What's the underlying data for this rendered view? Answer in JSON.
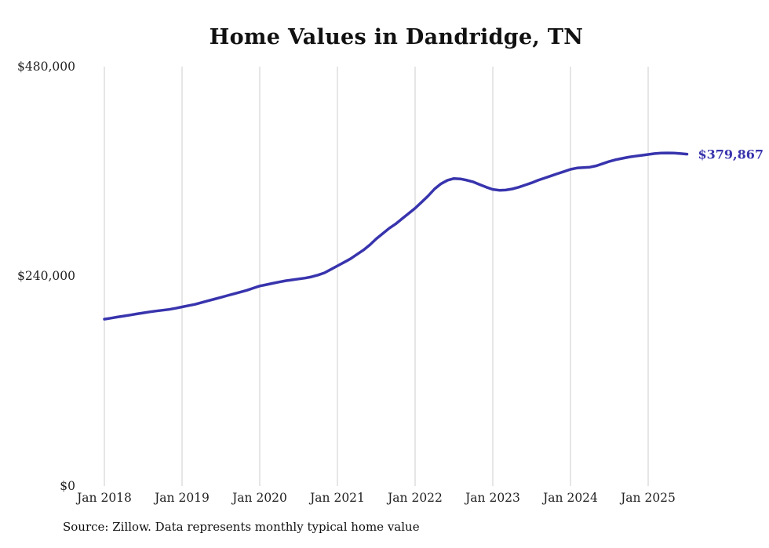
{
  "title": "Home Values in Dandridge, TN",
  "source_note": "Source: Zillow. Data represents monthly typical home value",
  "chart_data": {
    "type": "line",
    "title": "Home Values in Dandridge, TN",
    "xlabel": "",
    "ylabel": "",
    "unit": "USD",
    "frequency": "monthly",
    "start_month": "Jan 2018",
    "end_month": "Jul 2025",
    "ylim": [
      0,
      480000
    ],
    "grid": "vertical-only",
    "legend": "none",
    "line_color": "#3834ad",
    "grid_color": "#cccccc",
    "end_label": "$379,867",
    "end_value": 379867,
    "x_tick_labels": [
      "Jan 2018",
      "Jan 2019",
      "Jan 2020",
      "Jan 2021",
      "Jan 2022",
      "Jan 2023",
      "Jan 2024",
      "Jan 2025"
    ],
    "y_ticks": [
      {
        "label": "$0",
        "value": 0
      },
      {
        "label": "$240,000",
        "value": 240000
      },
      {
        "label": "$480,000",
        "value": 480000
      }
    ],
    "series": [
      {
        "name": "Typical home value",
        "values": [
          191000,
          192200,
          193400,
          194600,
          195800,
          197000,
          198200,
          199400,
          200300,
          201200,
          202100,
          203500,
          205000,
          206500,
          208000,
          210000,
          212000,
          214000,
          216000,
          218000,
          220000,
          222000,
          224000,
          226500,
          229000,
          230500,
          232000,
          233500,
          235000,
          236000,
          237000,
          238000,
          239500,
          241500,
          244000,
          248000,
          252000,
          256000,
          260000,
          265000,
          270000,
          276000,
          283000,
          289000,
          295000,
          300000,
          306000,
          312000,
          318000,
          325000,
          332000,
          340000,
          346000,
          350000,
          352000,
          351500,
          350000,
          348000,
          345000,
          342000,
          339500,
          338500,
          338800,
          340000,
          342000,
          344500,
          347000,
          350000,
          352500,
          355000,
          357500,
          360000,
          362500,
          364000,
          364500,
          365000,
          366500,
          369000,
          371500,
          373500,
          375000,
          376500,
          377500,
          378500,
          379500,
          380500,
          381000,
          381200,
          381000,
          380500,
          379867
        ]
      }
    ]
  }
}
